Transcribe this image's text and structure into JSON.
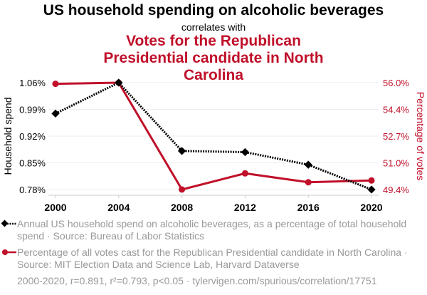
{
  "chart_data": {
    "type": "line",
    "title": "US household spending on alcoholic beverages",
    "subtitle": "correlates with",
    "title2": "Votes for the Republican Presidential candidate in North Carolina",
    "x": [
      2000,
      2004,
      2008,
      2012,
      2016,
      2020
    ],
    "x_ticks": [
      "2000",
      "2004",
      "2008",
      "2012",
      "2016",
      "2020"
    ],
    "series": [
      {
        "name": "Household spend",
        "axis": "left",
        "color": "#000000",
        "style": "dotted",
        "marker": "diamond",
        "values": [
          0.979,
          1.06,
          0.881,
          0.878,
          0.845,
          0.78
        ]
      },
      {
        "name": "Percentage of votes",
        "axis": "right",
        "color": "#c0102a",
        "style": "solid",
        "marker": "circle",
        "values": [
          55.93,
          56.0,
          49.4,
          50.4,
          49.85,
          49.96
        ]
      }
    ],
    "ylabel_left": "Household spend",
    "ylabel_right": "Percentage of votes",
    "ylim_left": [
      0.78,
      1.06
    ],
    "ylim_right": [
      49.4,
      56.0
    ],
    "yticks_left": [
      "1.06%",
      "0.99%",
      "0.92%",
      "0.85%",
      "0.78%"
    ],
    "yticks_right": [
      "56.0%",
      "54.4%",
      "52.7%",
      "51.0%",
      "49.4%"
    ],
    "grid": true
  },
  "legend": [
    "Annual US household spend on alcoholic beverages, as a percentage of total household spend · Source: Bureau of Labor Statistics",
    "Percentage of all votes cast for the Republican Presidential candidate in North Carolina · Source: MIT Election Data and Science Lab, Harvard Dataverse"
  ],
  "footer": "2000-2020, r=0.891, r²=0.793, p<0.05 · tylervigen.com/spurious/correlation/17751"
}
